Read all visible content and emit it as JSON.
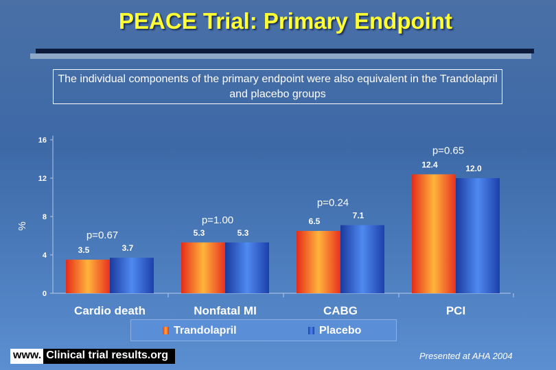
{
  "title": "PEACE Trial: Primary Endpoint",
  "note": "The individual components of the primary endpoint were also equivalent in the Trandolapril and placebo groups",
  "footer": {
    "www": "www.",
    "site": "Clinical trial results.org",
    "presented": "Presented at AHA 2004"
  },
  "colors": {
    "trandolapril": "#f04a23",
    "placebo": "#2f63d8",
    "title": "#ffff33"
  },
  "chart_data": {
    "type": "bar",
    "ylabel": "%",
    "ylim": [
      0,
      16
    ],
    "yticks": [
      "0",
      "4",
      "8",
      "12",
      "16"
    ],
    "categories": [
      "Cardio death",
      "Nonfatal MI",
      "CABG",
      "PCI"
    ],
    "series": [
      {
        "name": "Trandolapril",
        "values": [
          3.5,
          5.3,
          6.5,
          12.4
        ],
        "labels": [
          "3.5",
          "5.3",
          "6.5",
          "12.4"
        ]
      },
      {
        "name": "Placebo",
        "values": [
          3.7,
          5.3,
          7.1,
          12.0
        ],
        "labels": [
          "3.7",
          "5.3",
          "7.1",
          "12.0"
        ]
      }
    ],
    "p_values": [
      "p=0.67",
      "p=1.00",
      "p=0.24",
      "p=0.65"
    ],
    "legend": "bottom",
    "grid": false
  }
}
